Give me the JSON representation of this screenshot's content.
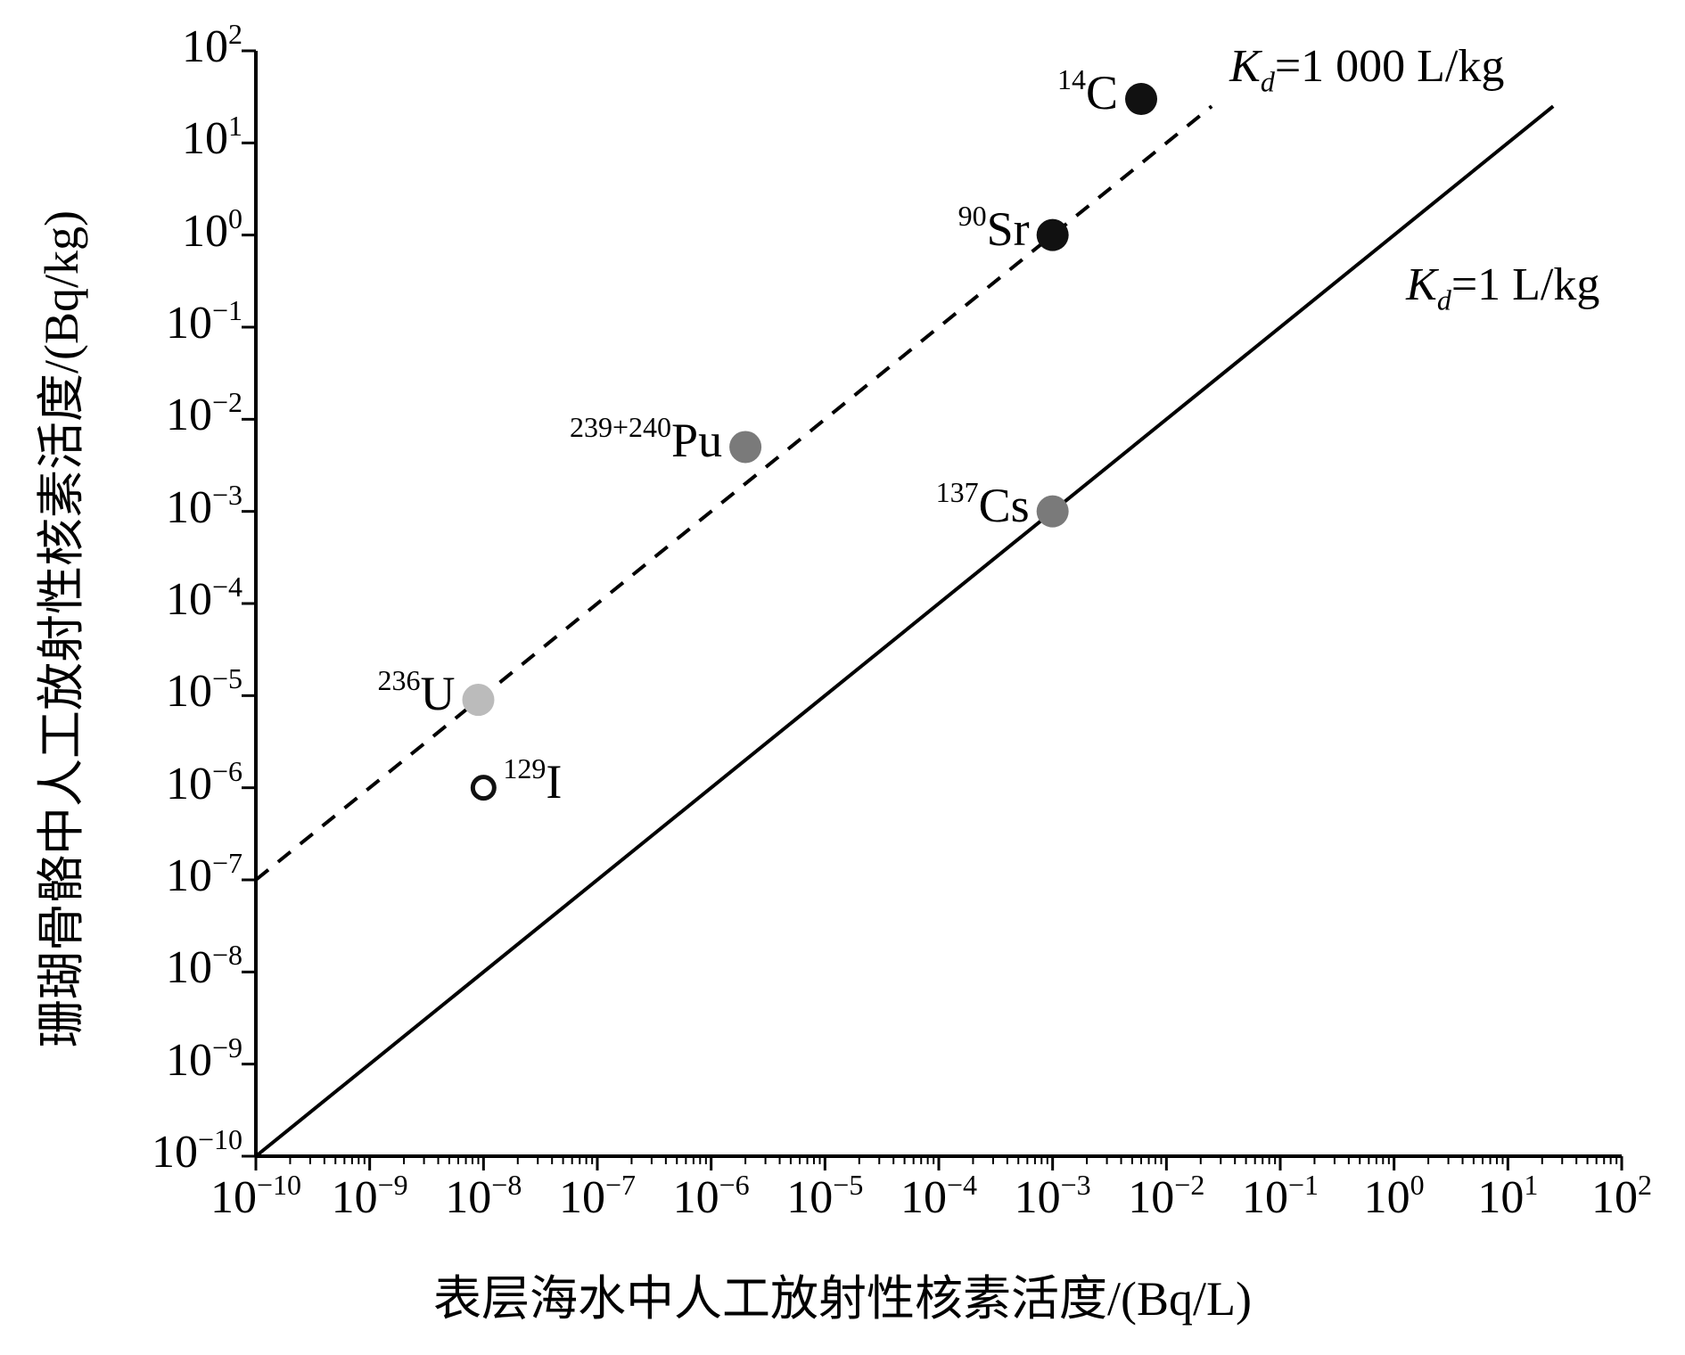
{
  "chart_data": {
    "type": "scatter",
    "xlabel": "表层海水中人工放射性核素活度/(Bq/L)",
    "ylabel": "珊瑚骨骼中人工放射性核素活度/(Bq/kg)",
    "x_scale": "log",
    "y_scale": "log",
    "xlim": [
      1e-10,
      100
    ],
    "ylim": [
      1e-10,
      100
    ],
    "x_ticks": [
      "10^-10",
      "10^-9",
      "10^-8",
      "10^-7",
      "10^-6",
      "10^-5",
      "10^-4",
      "10^-3",
      "10^-2",
      "10^-1",
      "10^0",
      "10^1",
      "10^2"
    ],
    "y_ticks": [
      "10^-10",
      "10^-9",
      "10^-8",
      "10^-7",
      "10^-6",
      "10^-5",
      "10^-4",
      "10^-3",
      "10^-2",
      "10^-1",
      "10^0",
      "10^1",
      "10^2"
    ],
    "x_tick_exponents": [
      "−10",
      "−9",
      "−8",
      "−7",
      "−6",
      "−5",
      "−4",
      "−3",
      "−2",
      "−1",
      "0",
      "1",
      "2"
    ],
    "y_tick_exponents": [
      "−10",
      "−9",
      "−8",
      "−7",
      "−6",
      "−5",
      "−4",
      "−3",
      "−2",
      "−1",
      "0",
      "1",
      "2"
    ],
    "tick_base": "10",
    "grid": false,
    "points": [
      {
        "mass": "14",
        "element": "C",
        "x": 0.006,
        "y": 30,
        "color": "#111111",
        "filled": true
      },
      {
        "mass": "90",
        "element": "Sr",
        "x": 0.001,
        "y": 1,
        "color": "#111111",
        "filled": true
      },
      {
        "mass": "239+240",
        "element": "Pu",
        "x": 2e-06,
        "y": 0.005,
        "color": "#7a7a7a",
        "filled": true
      },
      {
        "mass": "137",
        "element": "Cs",
        "x": 0.001,
        "y": 0.001,
        "color": "#7a7a7a",
        "filled": true
      },
      {
        "mass": "236",
        "element": "U",
        "x": 9e-09,
        "y": 9e-06,
        "color": "#bbbbbb",
        "filled": true
      },
      {
        "mass": "129",
        "element": "I",
        "x": 1e-08,
        "y": 1e-06,
        "color": "#111111",
        "filled": false
      }
    ],
    "reference_lines": [
      {
        "label_var": "K",
        "label_sub": "d",
        "label_rest": "=1 000 L/kg",
        "kd": 1000,
        "style": "dashed",
        "x_range": [
          1e-10,
          0.025
        ]
      },
      {
        "label_var": "K",
        "label_sub": "d",
        "label_rest": "=1 L/kg",
        "kd": 1,
        "style": "solid",
        "x_range": [
          1e-10,
          25
        ]
      }
    ]
  }
}
